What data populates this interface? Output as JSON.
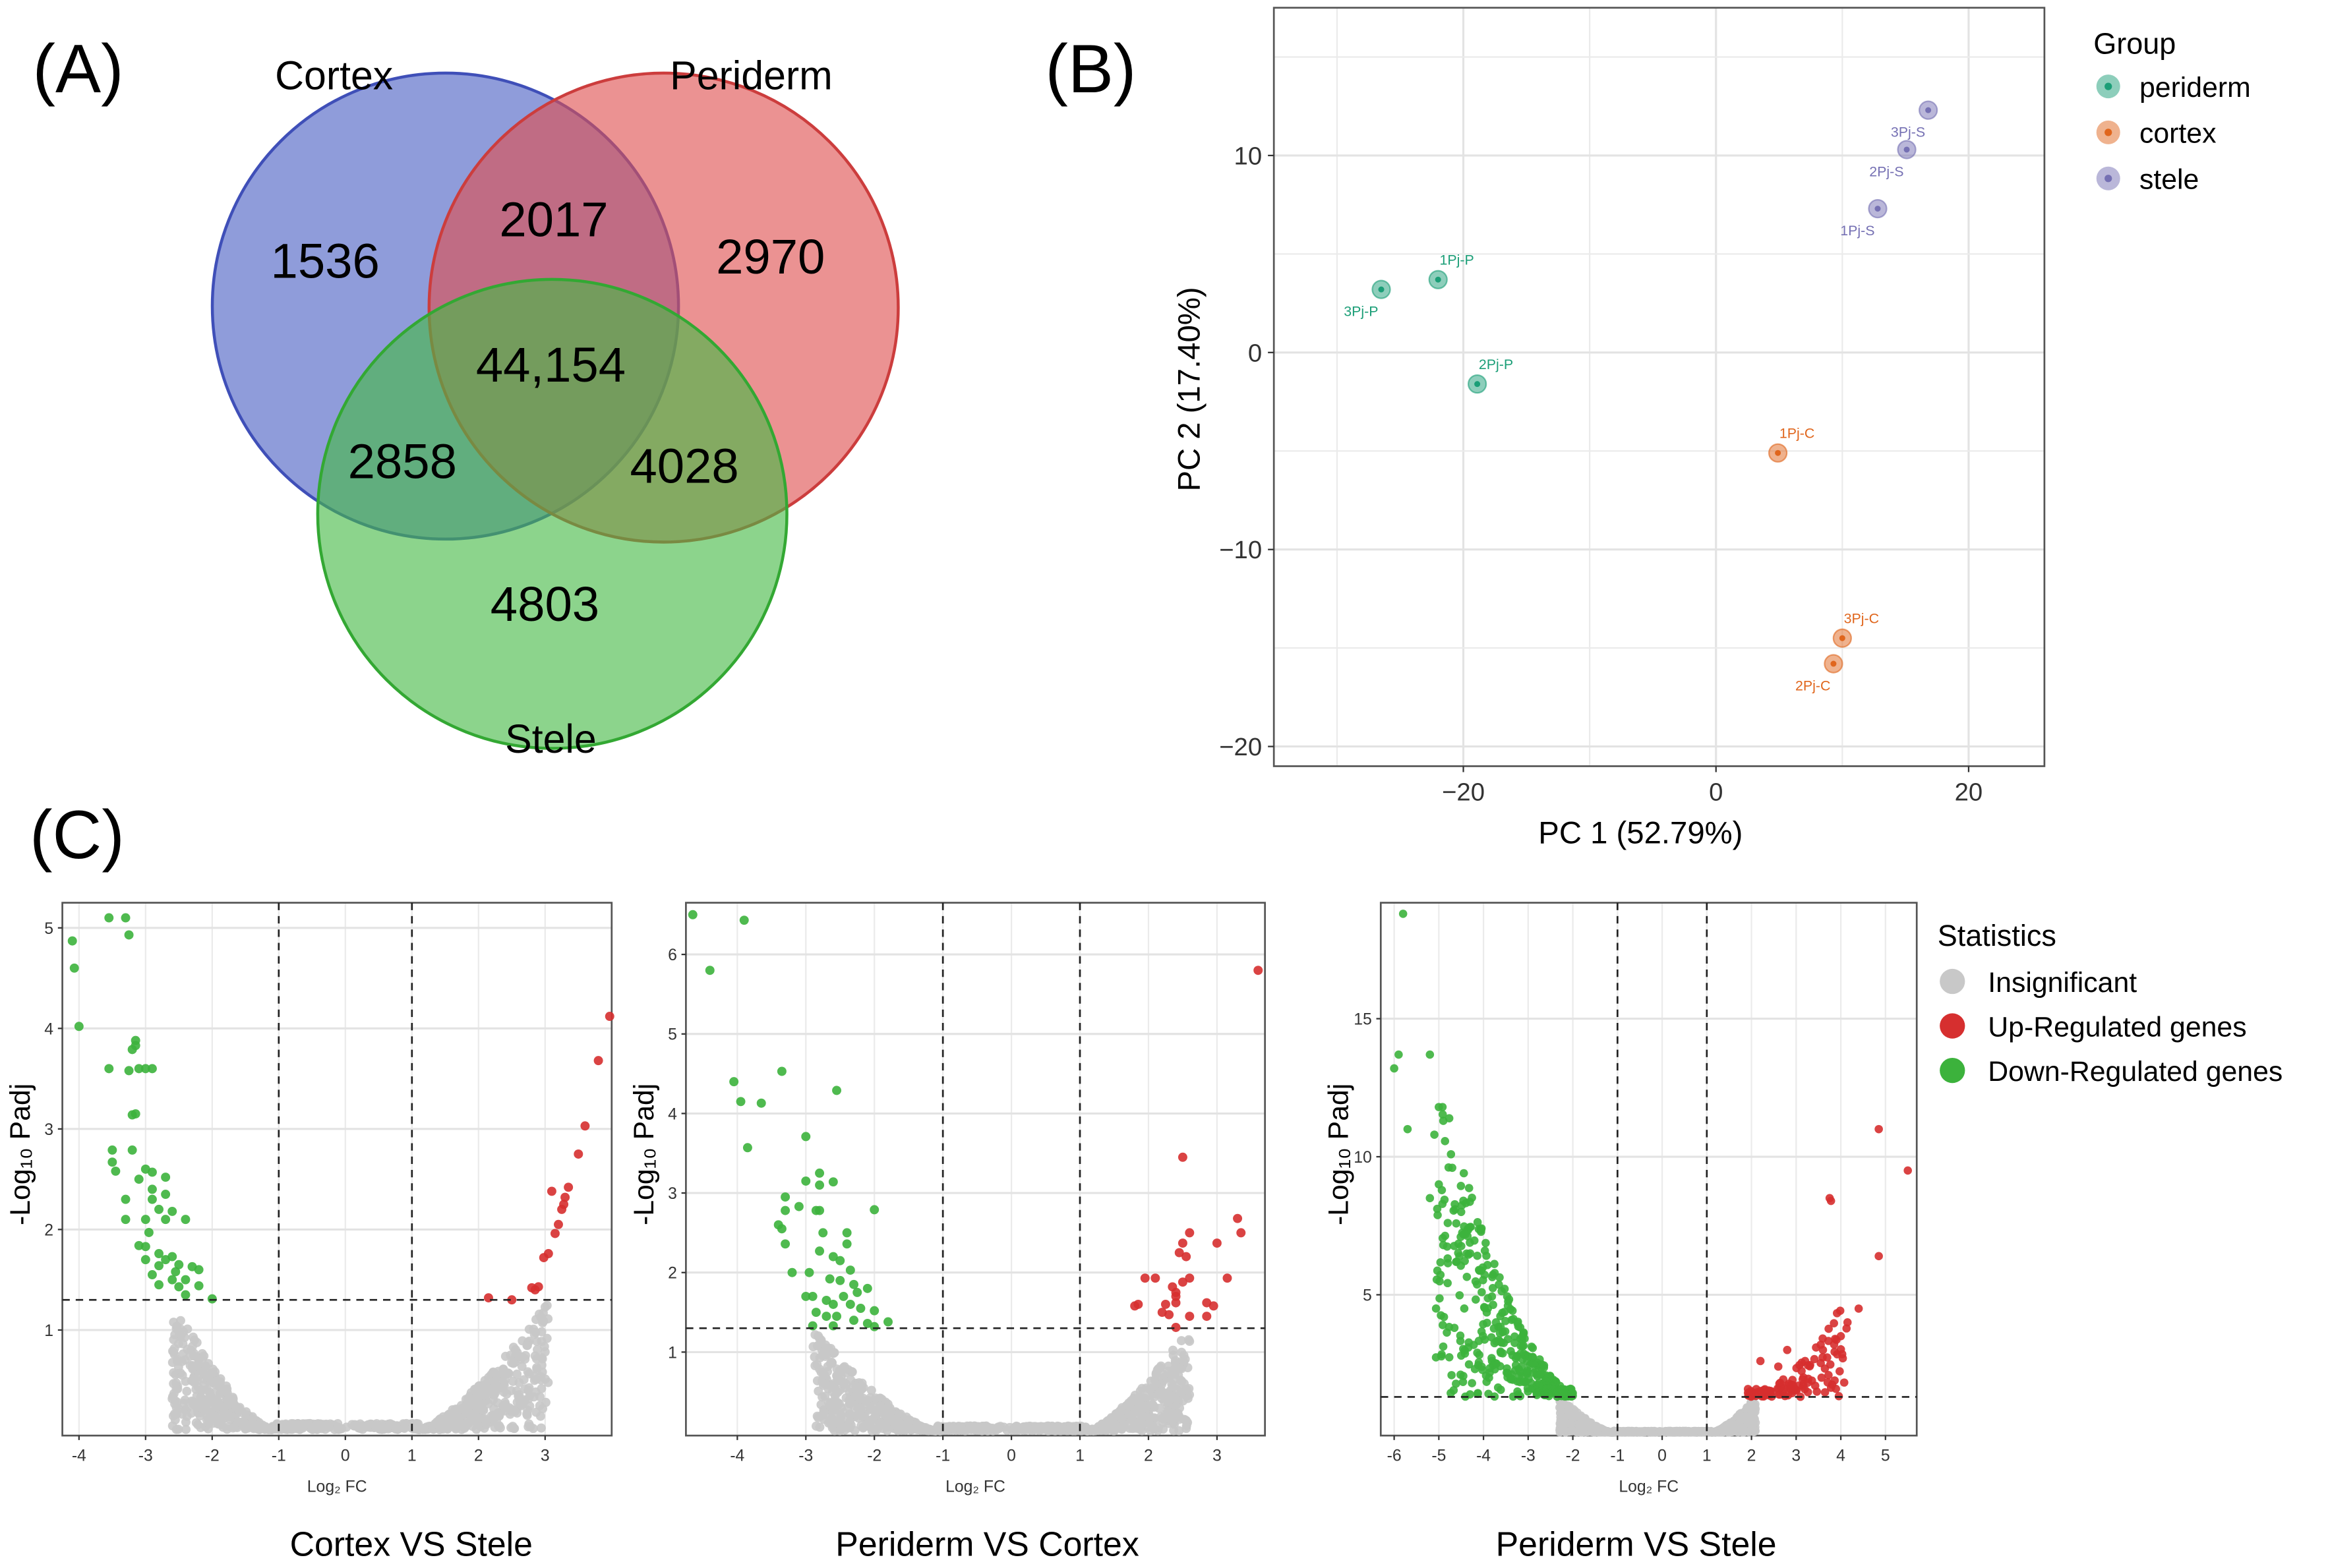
{
  "panels": {
    "a": "(A)",
    "b": "(B)",
    "c": "(C)"
  },
  "chart_data": [
    {
      "type": "venn",
      "sets": [
        "Cortex",
        "Periderm",
        "Stele"
      ],
      "regions": {
        "cortex_only": "1536",
        "periderm_only": "2970",
        "stele_only": "4803",
        "cortex_periderm": "2017",
        "cortex_stele": "2858",
        "periderm_stele": "4028",
        "all": "44,154"
      },
      "colors": {
        "Cortex": "#4a5fc4",
        "Periderm": "#de4f4f",
        "Stele": "#46b946"
      }
    },
    {
      "type": "scatter",
      "xlabel": "PC 1 (52.79%)",
      "ylabel": "PC 2 (17.40%)",
      "xlim": [
        -35,
        26
      ],
      "ylim": [
        -21,
        17.5
      ],
      "xticks": [
        -20,
        0,
        20
      ],
      "xtick_labels": [
        "−20",
        "0",
        "20"
      ],
      "yticks": [
        10,
        0,
        -10,
        -20
      ],
      "ytick_labels": [
        "10",
        "0",
        "−10",
        "−20"
      ],
      "legend_title": "Group",
      "legend_position": "right",
      "groups": [
        {
          "name": "periderm",
          "color": "#1b9e77",
          "points": [
            {
              "label": "1Pj-P",
              "x": -22.0,
              "y": 3.7,
              "label_pos": "above"
            },
            {
              "label": "2Pj-P",
              "x": -18.9,
              "y": -1.6,
              "label_pos": "above"
            },
            {
              "label": "3Pj-P",
              "x": -26.5,
              "y": 3.2,
              "label_pos": "below-left"
            }
          ]
        },
        {
          "name": "cortex",
          "color": "#e0661d",
          "points": [
            {
              "label": "1Pj-C",
              "x": 4.9,
              "y": -5.1,
              "label_pos": "above"
            },
            {
              "label": "2Pj-C",
              "x": 9.3,
              "y": -15.8,
              "label_pos": "below-left"
            },
            {
              "label": "3Pj-C",
              "x": 10.0,
              "y": -14.5,
              "label_pos": "above"
            }
          ]
        },
        {
          "name": "stele",
          "color": "#7570b3",
          "points": [
            {
              "label": "1Pj-S",
              "x": 12.8,
              "y": 7.3,
              "label_pos": "below-left"
            },
            {
              "label": "2Pj-S",
              "x": 15.1,
              "y": 10.3,
              "label_pos": "below-left"
            },
            {
              "label": "3Pj-S",
              "x": 16.8,
              "y": 12.3,
              "label_pos": "below-left"
            }
          ]
        }
      ]
    },
    {
      "type": "scatter",
      "title": "Cortex VS Stele",
      "xlabel": "Log₂ FC",
      "ylabel": "-Log₁₀ Padj",
      "xlim": [
        -4.25,
        4.0
      ],
      "ylim": [
        -0.05,
        5.25
      ],
      "xticks": [
        -4,
        -3,
        -2,
        -1,
        0,
        1,
        2,
        3
      ],
      "yticks": [
        1,
        2,
        3,
        4,
        5
      ],
      "fc_threshold": 1,
      "padj_threshold": 1.3,
      "insignificant_count": 900,
      "insignificant_edge": [
        -2.6,
        3.05
      ],
      "down": [
        [
          -4.1,
          4.87
        ],
        [
          -4.07,
          4.6
        ],
        [
          -4.0,
          4.02
        ],
        [
          -3.55,
          5.1
        ],
        [
          -3.3,
          5.1
        ],
        [
          -3.25,
          4.93
        ],
        [
          -3.15,
          3.88
        ],
        [
          -3.15,
          3.83
        ],
        [
          -3.2,
          3.79
        ],
        [
          -3.55,
          3.6
        ],
        [
          -3.25,
          3.58
        ],
        [
          -3.1,
          3.6
        ],
        [
          -3.0,
          3.6
        ],
        [
          -2.9,
          3.6
        ],
        [
          -3.2,
          3.14
        ],
        [
          -3.15,
          3.15
        ],
        [
          -3.5,
          2.79
        ],
        [
          -3.2,
          2.79
        ],
        [
          -3.5,
          2.67
        ],
        [
          -3.45,
          2.58
        ],
        [
          -3.0,
          2.6
        ],
        [
          -2.9,
          2.57
        ],
        [
          -2.7,
          2.52
        ],
        [
          -3.1,
          2.5
        ],
        [
          -2.9,
          2.4
        ],
        [
          -2.7,
          2.35
        ],
        [
          -2.9,
          2.3
        ],
        [
          -3.3,
          2.3
        ],
        [
          -2.8,
          2.2
        ],
        [
          -2.6,
          2.18
        ],
        [
          -3.3,
          2.1
        ],
        [
          -3.0,
          2.1
        ],
        [
          -2.7,
          2.1
        ],
        [
          -2.4,
          2.1
        ],
        [
          -2.95,
          1.97
        ],
        [
          -3.1,
          1.84
        ],
        [
          -3.0,
          1.83
        ],
        [
          -2.8,
          1.76
        ],
        [
          -2.6,
          1.73
        ],
        [
          -3.0,
          1.7
        ],
        [
          -2.5,
          1.65
        ],
        [
          -2.8,
          1.64
        ],
        [
          -2.3,
          1.63
        ],
        [
          -2.2,
          1.6
        ],
        [
          -2.9,
          1.55
        ],
        [
          -2.6,
          1.5
        ],
        [
          -2.4,
          1.5
        ],
        [
          -2.8,
          1.45
        ],
        [
          -2.5,
          1.43
        ],
        [
          -2.2,
          1.44
        ],
        [
          -2.4,
          1.35
        ],
        [
          -2.0,
          1.31
        ],
        [
          -2.7,
          1.7
        ],
        [
          -2.55,
          1.58
        ]
      ],
      "up": [
        [
          3.97,
          4.12
        ],
        [
          3.8,
          3.68
        ],
        [
          3.6,
          3.03
        ],
        [
          3.5,
          2.75
        ],
        [
          3.35,
          2.42
        ],
        [
          3.1,
          2.38
        ],
        [
          3.3,
          2.32
        ],
        [
          3.28,
          2.25
        ],
        [
          3.25,
          2.2
        ],
        [
          3.2,
          2.05
        ],
        [
          3.15,
          1.96
        ],
        [
          3.05,
          1.76
        ],
        [
          2.98,
          1.72
        ],
        [
          2.9,
          1.43
        ],
        [
          2.85,
          1.4
        ],
        [
          2.8,
          1.42
        ],
        [
          2.15,
          1.32
        ],
        [
          2.5,
          1.3
        ]
      ]
    },
    {
      "type": "scatter",
      "title": "Periderm VS Cortex",
      "xlabel": "Log₂ FC",
      "ylabel": "-Log₁₀ Padj",
      "xlim": [
        -4.75,
        3.7
      ],
      "ylim": [
        -0.05,
        6.65
      ],
      "xticks": [
        -4,
        -3,
        -2,
        -1,
        0,
        1,
        2,
        3
      ],
      "yticks": [
        1,
        2,
        3,
        4,
        5,
        6
      ],
      "fc_threshold": 1,
      "padj_threshold": 1.3,
      "insignificant_count": 1000,
      "insignificant_edge": [
        -2.9,
        2.6
      ],
      "down": [
        [
          -4.65,
          6.5
        ],
        [
          -4.4,
          5.8
        ],
        [
          -3.9,
          6.43
        ],
        [
          -4.05,
          4.4
        ],
        [
          -3.95,
          4.15
        ],
        [
          -3.65,
          4.13
        ],
        [
          -3.85,
          3.57
        ],
        [
          -3.35,
          4.53
        ],
        [
          -2.55,
          4.29
        ],
        [
          -3.0,
          3.71
        ],
        [
          -3.0,
          3.15
        ],
        [
          -2.8,
          3.25
        ],
        [
          -2.8,
          3.1
        ],
        [
          -2.6,
          3.14
        ],
        [
          -3.3,
          2.95
        ],
        [
          -3.3,
          2.78
        ],
        [
          -3.1,
          2.83
        ],
        [
          -2.85,
          2.78
        ],
        [
          -2.8,
          2.78
        ],
        [
          -2.0,
          2.79
        ],
        [
          -3.4,
          2.6
        ],
        [
          -3.35,
          2.55
        ],
        [
          -2.75,
          2.5
        ],
        [
          -2.4,
          2.5
        ],
        [
          -3.3,
          2.36
        ],
        [
          -2.4,
          2.36
        ],
        [
          -2.8,
          2.27
        ],
        [
          -2.6,
          2.2
        ],
        [
          -2.5,
          2.15
        ],
        [
          -3.2,
          2.0
        ],
        [
          -2.95,
          2.0
        ],
        [
          -2.35,
          2.03
        ],
        [
          -2.65,
          1.92
        ],
        [
          -2.5,
          1.9
        ],
        [
          -2.3,
          1.85
        ],
        [
          -2.1,
          1.8
        ],
        [
          -2.25,
          1.75
        ],
        [
          -2.45,
          1.7
        ],
        [
          -3.0,
          1.7
        ],
        [
          -2.9,
          1.7
        ],
        [
          -2.7,
          1.65
        ],
        [
          -2.6,
          1.6
        ],
        [
          -2.35,
          1.6
        ],
        [
          -2.2,
          1.55
        ],
        [
          -2.0,
          1.52
        ],
        [
          -2.85,
          1.5
        ],
        [
          -2.7,
          1.45
        ],
        [
          -2.55,
          1.45
        ],
        [
          -2.3,
          1.4
        ],
        [
          -1.8,
          1.38
        ],
        [
          -2.1,
          1.36
        ],
        [
          -2.9,
          1.33
        ],
        [
          -2.6,
          1.33
        ],
        [
          -2.0,
          1.32
        ]
      ],
      "up": [
        [
          3.6,
          5.8
        ],
        [
          2.5,
          3.45
        ],
        [
          3.3,
          2.68
        ],
        [
          3.35,
          2.5
        ],
        [
          2.6,
          2.5
        ],
        [
          3.0,
          2.37
        ],
        [
          2.5,
          2.37
        ],
        [
          2.45,
          2.25
        ],
        [
          2.55,
          2.2
        ],
        [
          1.95,
          1.93
        ],
        [
          2.1,
          1.93
        ],
        [
          2.6,
          1.93
        ],
        [
          3.15,
          1.93
        ],
        [
          2.5,
          1.88
        ],
        [
          2.35,
          1.82
        ],
        [
          2.4,
          1.75
        ],
        [
          2.4,
          1.7
        ],
        [
          1.85,
          1.6
        ],
        [
          1.8,
          1.58
        ],
        [
          2.25,
          1.6
        ],
        [
          2.4,
          1.62
        ],
        [
          2.85,
          1.62
        ],
        [
          2.95,
          1.58
        ],
        [
          2.2,
          1.5
        ],
        [
          2.3,
          1.47
        ],
        [
          2.6,
          1.45
        ],
        [
          2.85,
          1.45
        ],
        [
          2.4,
          1.31
        ]
      ]
    },
    {
      "type": "scatter",
      "title": "Periderm VS Stele",
      "xlabel": "Log₂ FC",
      "ylabel": "-Log₁₀ Padj",
      "xlim": [
        -6.3,
        5.7
      ],
      "ylim": [
        -0.1,
        19.2
      ],
      "xticks": [
        -6,
        -5,
        -4,
        -3,
        -2,
        -1,
        0,
        1,
        2,
        3,
        4,
        5
      ],
      "yticks": [
        5,
        10,
        15
      ],
      "fc_threshold": 1,
      "padj_threshold": 1.3,
      "insignificant_count": 1200,
      "insignificant_edge": [
        -2.3,
        2.1
      ],
      "down": [
        [
          -5.8,
          18.8
        ],
        [
          -6.0,
          13.2
        ],
        [
          -5.9,
          13.7
        ],
        [
          -5.7,
          11.0
        ],
        [
          -5.2,
          13.7
        ],
        [
          -5.0,
          11.8
        ],
        [
          -4.9,
          11.3
        ],
        [
          -5.1,
          10.8
        ],
        [
          -4.7,
          9.6
        ],
        [
          -5.0,
          9.0
        ],
        [
          -5.2,
          8.5
        ],
        [
          -4.5,
          8.0
        ],
        [
          -4.8,
          7.6
        ],
        [
          -4.4,
          7.2
        ],
        [
          -4.9,
          6.8
        ],
        [
          -4.3,
          6.5
        ],
        [
          -4.6,
          6.2
        ],
        [
          -4.1,
          5.9
        ]
      ],
      "down_dense_count": 380,
      "down_dense_range": [
        -5.1,
        -2.0
      ],
      "up": [
        [
          4.85,
          11.0
        ],
        [
          5.5,
          9.5
        ],
        [
          3.75,
          8.5
        ],
        [
          3.78,
          8.4
        ],
        [
          4.85,
          6.4
        ],
        [
          4.4,
          4.5
        ],
        [
          4.15,
          4.0
        ],
        [
          4.0,
          3.5
        ],
        [
          3.85,
          3.2
        ],
        [
          3.6,
          3.0
        ],
        [
          2.8,
          3.0
        ],
        [
          2.2,
          2.6
        ],
        [
          2.6,
          2.4
        ],
        [
          3.2,
          2.6
        ]
      ],
      "up_dense_count": 110,
      "up_dense_range": [
        1.9,
        4.2
      ]
    }
  ],
  "volcano_legend": {
    "title": "Statistics",
    "items": [
      {
        "label": "Insignificant",
        "color": "#c8c8c8"
      },
      {
        "label": "Up-Regulated genes",
        "color": "#d62f2f"
      },
      {
        "label": "Down-Regulated genes",
        "color": "#3cb23c"
      }
    ]
  }
}
